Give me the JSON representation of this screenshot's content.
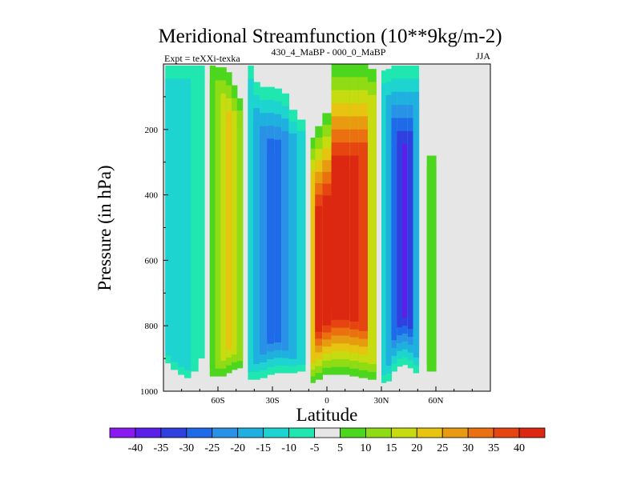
{
  "chart_data": {
    "type": "heatmap",
    "title": "Meridional Streamfunction (10**9kg/m-2)",
    "subtitle_left": "Expt = teXXi-texka",
    "subtitle_center": "430_4_MaBP - 000_0_MaBP",
    "subtitle_right": "JJA",
    "xlabel": "Latitude",
    "ylabel": "Pressure (in hPa)",
    "xlim": [
      -90,
      90
    ],
    "ylim": [
      0,
      1000
    ],
    "y_inverted": true,
    "x_ticks": [
      {
        "value": -60,
        "label": "60S"
      },
      {
        "value": -30,
        "label": "30S"
      },
      {
        "value": 0,
        "label": "0"
      },
      {
        "value": 30,
        "label": "30N"
      },
      {
        "value": 60,
        "label": "60N"
      }
    ],
    "y_ticks": [
      {
        "value": 200,
        "label": "200"
      },
      {
        "value": 400,
        "label": "400"
      },
      {
        "value": 600,
        "label": "600"
      },
      {
        "value": 800,
        "label": "800"
      },
      {
        "value": 1000,
        "label": "1000"
      }
    ],
    "colorbar": {
      "levels": [
        -40,
        -35,
        -30,
        -25,
        -20,
        -15,
        -10,
        -5,
        5,
        10,
        15,
        20,
        25,
        30,
        35,
        40
      ],
      "labels": [
        "-40",
        "-35",
        "-30",
        "-25",
        "-20",
        "-15",
        "-10",
        "-5",
        "5",
        "10",
        "15",
        "20",
        "25",
        "30",
        "35",
        "40"
      ],
      "colors": [
        "#8a1bf0",
        "#5a1fe8",
        "#3040e0",
        "#1e6ae8",
        "#2a92e6",
        "#1fb0e0",
        "#1ed4d0",
        "#20e6b0",
        "#e6e6e6",
        "#4cd61e",
        "#90dc14",
        "#c6dc10",
        "#e6c410",
        "#e89a10",
        "#ea7010",
        "#e64410",
        "#dc2810"
      ]
    },
    "missing_color": "#e6e6e6",
    "columns": [
      {
        "lat": -90,
        "top": 0,
        "bottom": 1000,
        "value": 0
      },
      {
        "lat": -88,
        "top": 5,
        "bottom": 915,
        "value": -13
      },
      {
        "lat": -84,
        "top": 5,
        "bottom": 935,
        "value": -14
      },
      {
        "lat": -80,
        "top": 5,
        "bottom": 950,
        "value": -13
      },
      {
        "lat": -77,
        "top": 5,
        "bottom": 960,
        "value": -11
      },
      {
        "lat": -73,
        "top": 5,
        "bottom": 940,
        "value": -9
      },
      {
        "lat": -69,
        "top": 5,
        "bottom": 900,
        "value": -5
      },
      {
        "lat": -66,
        "top": 0,
        "bottom": 1000,
        "value": 0
      },
      {
        "lat": -63,
        "top": 5,
        "bottom": 955,
        "value": 6
      },
      {
        "lat": -60,
        "top": 10,
        "bottom": 955,
        "value": 12
      },
      {
        "lat": -57,
        "top": 10,
        "bottom": 955,
        "value": 18
      },
      {
        "lat": -54,
        "top": 25,
        "bottom": 945,
        "value": 21
      },
      {
        "lat": -51,
        "top": 65,
        "bottom": 935,
        "value": 17
      },
      {
        "lat": -48,
        "top": 105,
        "bottom": 930,
        "value": 11
      },
      {
        "lat": -45,
        "top": 0,
        "bottom": 1000,
        "value": 0
      },
      {
        "lat": -42,
        "top": 5,
        "bottom": 965,
        "value": -12
      },
      {
        "lat": -39,
        "top": 55,
        "bottom": 965,
        "value": -17
      },
      {
        "lat": -35,
        "top": 70,
        "bottom": 960,
        "value": -22
      },
      {
        "lat": -31,
        "top": 70,
        "bottom": 950,
        "value": -27
      },
      {
        "lat": -27,
        "top": 75,
        "bottom": 945,
        "value": -28
      },
      {
        "lat": -23,
        "top": 90,
        "bottom": 945,
        "value": -24
      },
      {
        "lat": -19,
        "top": 140,
        "bottom": 945,
        "value": -15
      },
      {
        "lat": -14,
        "top": 170,
        "bottom": 940,
        "value": -10
      },
      {
        "lat": -10,
        "top": 0,
        "bottom": 1000,
        "value": 0
      },
      {
        "lat": -8,
        "top": 225,
        "bottom": 975,
        "value": 22
      },
      {
        "lat": -5,
        "top": 190,
        "bottom": 965,
        "value": 42
      },
      {
        "lat": 0,
        "top": 150,
        "bottom": 950,
        "value": 45
      },
      {
        "lat": 5,
        "top": 0,
        "bottom": 950,
        "value": 45
      },
      {
        "lat": 10,
        "top": 0,
        "bottom": 950,
        "value": 45
      },
      {
        "lat": 15,
        "top": 0,
        "bottom": 955,
        "value": 43
      },
      {
        "lat": 20,
        "top": 0,
        "bottom": 960,
        "value": 37
      },
      {
        "lat": 25,
        "top": 15,
        "bottom": 965,
        "value": 18
      },
      {
        "lat": 29,
        "top": 0,
        "bottom": 1000,
        "value": 0
      },
      {
        "lat": 31,
        "top": 20,
        "bottom": 975,
        "value": -13
      },
      {
        "lat": 34,
        "top": 15,
        "bottom": 970,
        "value": -19
      },
      {
        "lat": 37,
        "top": 5,
        "bottom": 940,
        "value": -26
      },
      {
        "lat": 40,
        "top": 5,
        "bottom": 925,
        "value": -31
      },
      {
        "lat": 43,
        "top": 5,
        "bottom": 920,
        "value": -36
      },
      {
        "lat": 46,
        "top": 5,
        "bottom": 930,
        "value": -30
      },
      {
        "lat": 49,
        "top": 5,
        "bottom": 945,
        "value": -18
      },
      {
        "lat": 52,
        "top": 0,
        "bottom": 1000,
        "value": 0
      },
      {
        "lat": 58,
        "top": 280,
        "bottom": 940,
        "value": 9
      },
      {
        "lat": 62,
        "top": 0,
        "bottom": 1000,
        "value": 0
      }
    ]
  }
}
